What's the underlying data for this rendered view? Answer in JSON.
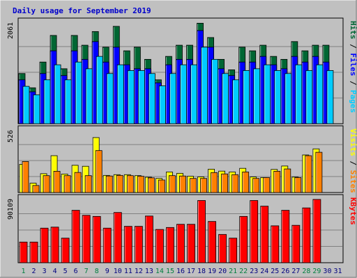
{
  "chart_data": {
    "type": "bar",
    "title": "Daily usage for September 2019",
    "colors": {
      "background": "#c0c0c0",
      "title": "#0000cc",
      "hits": "#006633",
      "files": "#0000ff",
      "pages": "#00ccff",
      "visits": "#ffff00",
      "sites": "#ff8000",
      "kbytes": "#ff0000",
      "weekend": "#008040",
      "weekday": "#000080"
    },
    "days": [
      "1",
      "2",
      "3",
      "4",
      "5",
      "6",
      "7",
      "8",
      "9",
      "10",
      "11",
      "12",
      "13",
      "14",
      "15",
      "16",
      "17",
      "18",
      "19",
      "20",
      "21",
      "22",
      "23",
      "24",
      "25",
      "26",
      "27",
      "28",
      "29",
      "30",
      "31"
    ],
    "weekend_days": [
      1,
      7,
      8,
      14,
      15,
      21,
      22,
      28,
      29
    ],
    "panels": [
      {
        "id": "hits-files-pages",
        "ymax_label": "2061",
        "ymax": 2061,
        "axis_labels": [
          {
            "text": "Hits",
            "color": "#006633"
          },
          {
            "text": "Files",
            "color": "#0000ff"
          },
          {
            "text": "Pages",
            "color": "#00ccff"
          }
        ],
        "series": [
          {
            "name": "Hits",
            "color": "#006633",
            "values": [
              1006,
              720,
              1236,
              1769,
              1102,
              1769,
              1573,
              1847,
              1534,
              1951,
              1461,
              1534,
              1290,
              880,
              1349,
              1573,
              1573,
              2014,
              1727,
              1290,
              1080,
              1534,
              1461,
              1573,
              1349,
              1290,
              1646,
              1461,
              1573,
              1573,
              null
            ]
          },
          {
            "name": "Files",
            "color": "#0000ff",
            "values": [
              880,
              640,
              1006,
              1461,
              966,
              1461,
              1290,
              1646,
              1236,
              1534,
              1181,
              1102,
              1102,
              820,
              1181,
              1290,
              1290,
              1867,
              1534,
              1102,
              966,
              1236,
              1236,
              1349,
              1181,
              1102,
              1349,
              1236,
              1349,
              1236,
              null
            ]
          },
          {
            "name": "Pages",
            "color": "#00ccff",
            "values": [
              750,
              580,
              880,
              1181,
              880,
              1236,
              1102,
              1349,
              1006,
              1181,
              1066,
              1066,
              1006,
              760,
              1006,
              1181,
              1181,
              1534,
              1290,
              1006,
              880,
              1066,
              1102,
              1181,
              1066,
              1006,
              1181,
              1066,
              1181,
              1066,
              null
            ]
          }
        ]
      },
      {
        "id": "visits-sites",
        "ymax_label": "526",
        "ymax": 526,
        "axis_labels": [
          {
            "text": "Visits",
            "color": "#ffff00"
          },
          {
            "text": "Sites",
            "color": "#ff8000"
          }
        ],
        "series": [
          {
            "name": "Visits",
            "color": "#ffff00",
            "values": [
              232,
              77,
              155,
              303,
              152,
              224,
              216,
              452,
              141,
              147,
              147,
              139,
              126,
              116,
              169,
              158,
              134,
              129,
              192,
              176,
              169,
              199,
              128,
              123,
              190,
              218,
              127,
              309,
              359,
              null,
              null
            ]
          },
          {
            "name": "Sites",
            "color": "#ff8000",
            "values": [
              255,
              58,
              139,
              175,
              139,
              165,
              139,
              345,
              136,
              141,
              139,
              134,
              121,
              103,
              139,
              136,
              116,
              116,
              164,
              153,
              147,
              169,
              116,
              123,
              175,
              194,
              123,
              303,
              331,
              null,
              null
            ]
          }
        ]
      },
      {
        "id": "kbytes",
        "ymax_label": "90109",
        "ymax": 90109,
        "axis_labels": [
          {
            "text": "KBytes",
            "color": "#ff0000"
          }
        ],
        "series": [
          {
            "name": "KBytes",
            "color": "#ff0000",
            "values": [
              28500,
              28500,
              47700,
              49100,
              33900,
              72300,
              65400,
              63900,
              47700,
              69300,
              50200,
              50200,
              64400,
              45900,
              48600,
              53000,
              53000,
              85800,
              56900,
              39000,
              33900,
              63900,
              85800,
              78000,
              50900,
              72300,
              51600,
              75600,
              87300,
              null,
              null
            ]
          }
        ]
      }
    ]
  }
}
